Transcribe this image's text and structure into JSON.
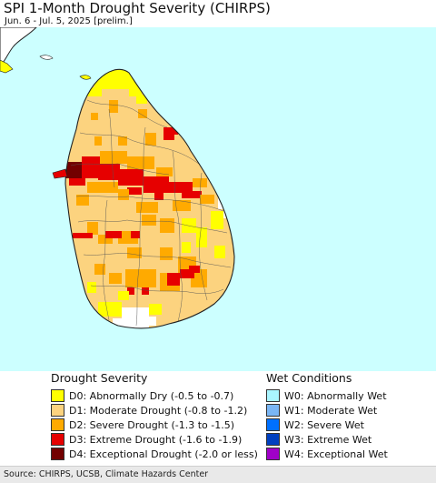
{
  "title": "SPI 1-Month Drought Severity (CHIRPS)",
  "subtitle": "Jun. 6 - Jul. 5, 2025 [prelim.]",
  "colors": {
    "ocean": "#ccffff",
    "land_outline": "#222222",
    "d0": "#ffff00",
    "d1": "#fcd37f",
    "d2": "#ffaa00",
    "d3": "#e60000",
    "d4": "#730000",
    "w0": "#aaf5ff",
    "w1": "#7ab6f5",
    "w2": "#0070ff",
    "w3": "#0040c0",
    "w4": "#a000c8"
  },
  "legend": {
    "drought_title": "Drought Severity",
    "wet_title": "Wet Conditions",
    "drought": [
      {
        "label": "D0: Abnormally Dry (-0.5 to -0.7)",
        "color": "#ffff00"
      },
      {
        "label": "D1: Moderate Drought (-0.8 to -1.2)",
        "color": "#fcd37f"
      },
      {
        "label": "D2: Severe Drought (-1.3 to -1.5)",
        "color": "#ffaa00"
      },
      {
        "label": "D3: Extreme Drought (-1.6 to -1.9)",
        "color": "#e60000"
      },
      {
        "label": "D4: Exceptional Drought (-2.0 or less)",
        "color": "#730000"
      }
    ],
    "wet": [
      {
        "label": "W0: Abnormally Wet",
        "color": "#aaf5ff"
      },
      {
        "label": "W1: Moderate Wet",
        "color": "#7ab6f5"
      },
      {
        "label": "W2: Severe Wet",
        "color": "#0070ff"
      },
      {
        "label": "W3: Extreme Wet",
        "color": "#0040c0"
      },
      {
        "label": "W4: Exceptional Wet",
        "color": "#a000c8"
      }
    ]
  },
  "footer": "Source: CHIRPS, UCSB, Climate Hazards Center"
}
